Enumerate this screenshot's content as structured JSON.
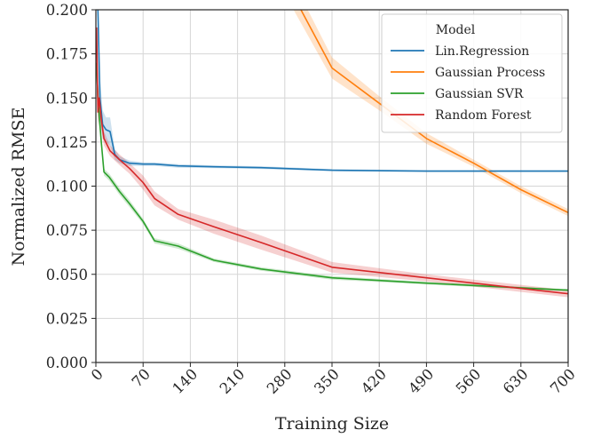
{
  "chart_data": {
    "type": "line",
    "xlabel": "Training Size",
    "ylabel": "Normalized RMSE",
    "xlim": [
      0,
      700
    ],
    "ylim": [
      0,
      0.2
    ],
    "x_ticks": [
      0,
      70,
      140,
      210,
      280,
      350,
      420,
      490,
      560,
      630,
      700
    ],
    "x_tick_labels": [
      "0",
      "70",
      "140",
      "210",
      "280",
      "350",
      "420",
      "490",
      "560",
      "630",
      "700"
    ],
    "y_ticks": [
      0,
      0.025,
      0.05,
      0.075,
      0.1,
      0.125,
      0.15,
      0.175,
      0.2
    ],
    "y_tick_labels": [
      "0.000",
      "0.025",
      "0.050",
      "0.075",
      "0.100",
      "0.125",
      "0.150",
      "0.175",
      "0.200"
    ],
    "grid": true,
    "legend": {
      "title": "Model",
      "placement": "top-right"
    },
    "series": [
      {
        "name": "Lin.Regression",
        "color": "#1f77b4",
        "x": [
          1,
          3,
          6,
          10,
          15,
          21,
          28,
          35,
          50,
          70,
          87,
          122,
          175,
          245,
          350,
          490,
          700
        ],
        "y": [
          0.3,
          0.2,
          0.15,
          0.135,
          0.132,
          0.131,
          0.118,
          0.115,
          0.113,
          0.1125,
          0.1125,
          0.1115,
          0.111,
          0.1105,
          0.109,
          0.1085,
          0.1085
        ],
        "band": [
          0.01,
          0.008,
          0.012,
          0.008,
          0.007,
          0.008,
          0.003,
          0.002,
          0.0015,
          0.001,
          0.001,
          0.001,
          0.0008,
          0.0008,
          0.0006,
          0.0005,
          0.0005
        ]
      },
      {
        "name": "Gaussian Process",
        "color": "#ff7f0e",
        "x": [
          245,
          290,
          350,
          420,
          490,
          560,
          630,
          700
        ],
        "y": [
          0.24,
          0.21,
          0.167,
          0.147,
          0.127,
          0.113,
          0.098,
          0.085
        ],
        "band": [
          0.01,
          0.008,
          0.006,
          0.004,
          0.003,
          0.002,
          0.002,
          0.002
        ]
      },
      {
        "name": "Gaussian SVR",
        "color": "#2ca02c",
        "x": [
          1,
          3,
          5,
          8,
          12,
          20,
          35,
          50,
          70,
          87,
          122,
          175,
          245,
          350,
          490,
          700
        ],
        "y": [
          0.17,
          0.15,
          0.14,
          0.125,
          0.108,
          0.105,
          0.097,
          0.09,
          0.08,
          0.069,
          0.066,
          0.058,
          0.053,
          0.048,
          0.045,
          0.041
        ],
        "band": [
          0.01,
          0.01,
          0.006,
          0.003,
          0.002,
          0.002,
          0.002,
          0.002,
          0.0015,
          0.0015,
          0.0015,
          0.001,
          0.001,
          0.001,
          0.0008,
          0.0006
        ]
      },
      {
        "name": "Random Forest",
        "color": "#d62728",
        "x": [
          1,
          3,
          5,
          8,
          12,
          21,
          35,
          50,
          70,
          87,
          122,
          175,
          245,
          350,
          490,
          700
        ],
        "y": [
          0.19,
          0.142,
          0.15,
          0.138,
          0.127,
          0.12,
          0.115,
          0.11,
          0.102,
          0.093,
          0.084,
          0.077,
          0.068,
          0.054,
          0.048,
          0.039
        ],
        "band": [
          0.01,
          0.008,
          0.01,
          0.006,
          0.004,
          0.003,
          0.003,
          0.003,
          0.004,
          0.004,
          0.003,
          0.004,
          0.004,
          0.003,
          0.002,
          0.002
        ]
      }
    ]
  }
}
